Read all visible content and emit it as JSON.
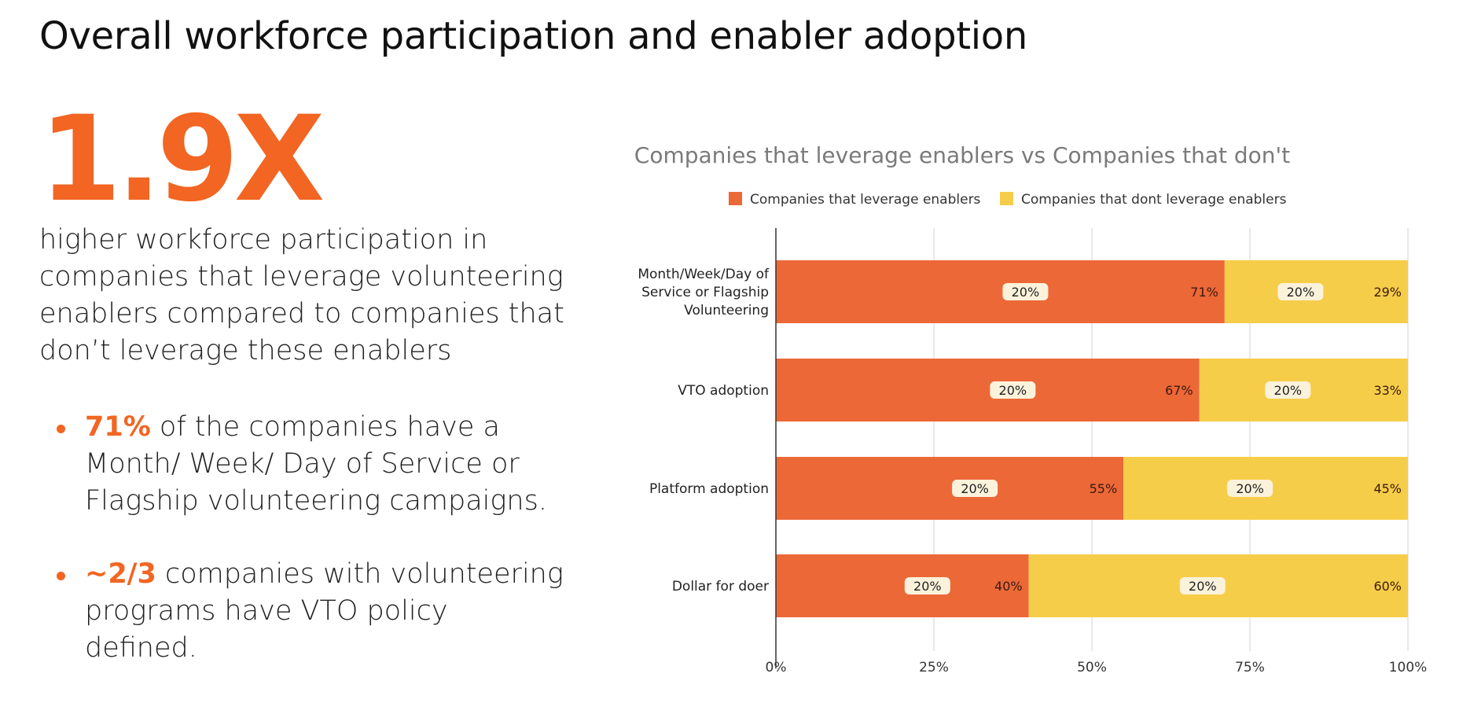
{
  "page": {
    "title": "Overall workforce participation and enabler adoption",
    "stat": "1.9X",
    "description": "higher workforce participation in companies that leverage volunteering enablers compared to companies that don’t leverage these enablers",
    "bullets": [
      {
        "highlight": "71%",
        "text": " of the companies have a Month/ Week/ Day of Service or Flagship volunteering campaigns."
      },
      {
        "highlight": "~2/3",
        "text": " companies with volunteering programs have VTO policy defined."
      }
    ]
  },
  "colors": {
    "accent": "#F26522",
    "series_leverage": "#EC6837",
    "series_dont": "#F6CD48",
    "pill": "#FBF2DC"
  },
  "chart_data": {
    "type": "bar",
    "orientation": "horizontal",
    "stacked": true,
    "title": "Companies that leverage enablers vs Companies that don't",
    "categories": [
      "Month/Week/Day of Service or Flagship Volunteering",
      "VTO adoption",
      "Platform adoption",
      "Dollar for doer"
    ],
    "series": [
      {
        "name": "Companies that leverage enablers",
        "values": [
          71,
          67,
          55,
          40
        ],
        "labels": [
          "71%",
          "67%",
          "55%",
          "40%"
        ]
      },
      {
        "name": "Companies that dont leverage enablers",
        "values": [
          29,
          33,
          45,
          60
        ],
        "labels": [
          "29%",
          "33%",
          "45%",
          "60%"
        ]
      }
    ],
    "pill_label": "20%",
    "x_ticks": [
      "0%",
      "25%",
      "50%",
      "75%",
      "100%"
    ],
    "xlim": [
      0,
      100
    ],
    "grid": true,
    "legend_position": "top"
  }
}
